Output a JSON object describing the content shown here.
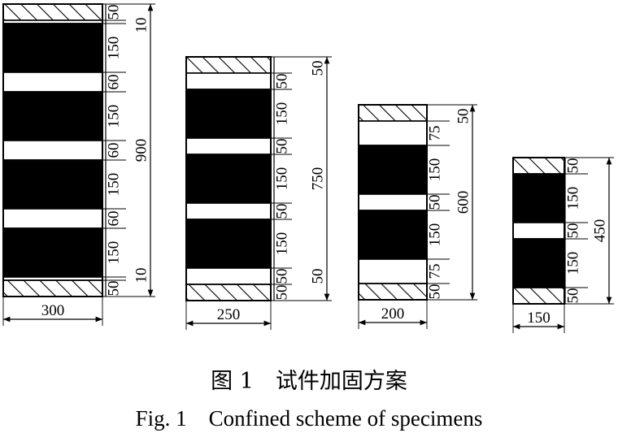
{
  "specimens": [
    {
      "width_label": "300",
      "total_label": "900",
      "segments": [
        {
          "kind": "hatch",
          "value": 50,
          "label": "50"
        },
        {
          "kind": "gap",
          "value": 10
        },
        {
          "kind": "cfrp",
          "value": 150,
          "label": "150"
        },
        {
          "kind": "gap",
          "value": 60,
          "label": "60"
        },
        {
          "kind": "cfrp",
          "value": 150,
          "label": "150"
        },
        {
          "kind": "gap",
          "value": 60,
          "label": "60"
        },
        {
          "kind": "cfrp",
          "value": 150,
          "label": "150"
        },
        {
          "kind": "gap",
          "value": 60,
          "label": "60"
        },
        {
          "kind": "cfrp",
          "value": 150,
          "label": "150"
        },
        {
          "kind": "gap",
          "value": 10
        },
        {
          "kind": "hatch",
          "value": 50,
          "label": "50"
        }
      ],
      "outer_labels": [
        "10",
        "10"
      ]
    },
    {
      "width_label": "250",
      "total_label": "750",
      "segments": [
        {
          "kind": "hatch",
          "value": 50
        },
        {
          "kind": "gap",
          "value": 50,
          "label": "50"
        },
        {
          "kind": "cfrp",
          "value": 150,
          "label": "150"
        },
        {
          "kind": "gap",
          "value": 50,
          "label": "50"
        },
        {
          "kind": "cfrp",
          "value": 150,
          "label": "150"
        },
        {
          "kind": "gap",
          "value": 50,
          "label": "50"
        },
        {
          "kind": "cfrp",
          "value": 150,
          "label": "150"
        },
        {
          "kind": "gap",
          "value": 50,
          "label": "50"
        },
        {
          "kind": "hatch",
          "value": 50,
          "label": "50"
        }
      ],
      "outer_labels": [
        "50",
        "50"
      ]
    },
    {
      "width_label": "200",
      "total_label": "600",
      "segments": [
        {
          "kind": "hatch",
          "value": 50
        },
        {
          "kind": "gap",
          "value": 75,
          "label": "75"
        },
        {
          "kind": "cfrp",
          "value": 150,
          "label": "150"
        },
        {
          "kind": "gap",
          "value": 50,
          "label": "50"
        },
        {
          "kind": "cfrp",
          "value": 150,
          "label": "150"
        },
        {
          "kind": "gap",
          "value": 75,
          "label": "75"
        },
        {
          "kind": "hatch",
          "value": 50,
          "label": "50"
        }
      ],
      "outer_labels": [
        "50"
      ]
    },
    {
      "width_label": "150",
      "total_label": "450",
      "segments": [
        {
          "kind": "hatch",
          "value": 50,
          "label": "50"
        },
        {
          "kind": "cfrp",
          "value": 150,
          "label": "150"
        },
        {
          "kind": "gap",
          "value": 50,
          "label": "50"
        },
        {
          "kind": "cfrp",
          "value": 150,
          "label": "150"
        },
        {
          "kind": "hatch",
          "value": 50,
          "label": "50"
        }
      ],
      "outer_labels": []
    }
  ],
  "caption": {
    "cn": "图 1　试件加固方案",
    "en": "Fig. 1　Confined scheme of specimens"
  }
}
